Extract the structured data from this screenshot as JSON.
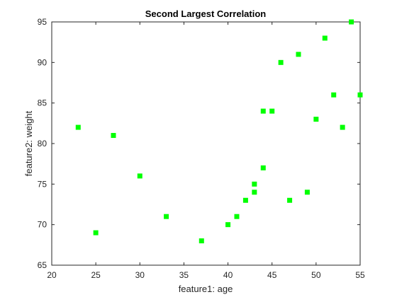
{
  "chart_data": {
    "type": "scatter",
    "title": "Second Largest Correlation",
    "xlabel": "feature1: age",
    "ylabel": "feature2: weight",
    "xlim": [
      20,
      55
    ],
    "ylim": [
      65,
      95
    ],
    "xticks": [
      "20",
      "25",
      "30",
      "35",
      "40",
      "45",
      "50",
      "55"
    ],
    "yticks": [
      "65",
      "70",
      "75",
      "80",
      "85",
      "90",
      "95"
    ],
    "grid": false,
    "legend": "none",
    "marker": "square",
    "marker_color": "#00ff00",
    "axis_color": "#262626",
    "background": "#ffffff",
    "points": [
      {
        "x": 23,
        "y": 82
      },
      {
        "x": 25,
        "y": 69
      },
      {
        "x": 27,
        "y": 81
      },
      {
        "x": 30,
        "y": 76
      },
      {
        "x": 33,
        "y": 71
      },
      {
        "x": 37,
        "y": 68
      },
      {
        "x": 40,
        "y": 70
      },
      {
        "x": 41,
        "y": 71
      },
      {
        "x": 42,
        "y": 73
      },
      {
        "x": 43,
        "y": 74
      },
      {
        "x": 43,
        "y": 75
      },
      {
        "x": 44,
        "y": 77
      },
      {
        "x": 44,
        "y": 84
      },
      {
        "x": 45,
        "y": 84
      },
      {
        "x": 46,
        "y": 90
      },
      {
        "x": 47,
        "y": 73
      },
      {
        "x": 48,
        "y": 91
      },
      {
        "x": 49,
        "y": 74
      },
      {
        "x": 50,
        "y": 83
      },
      {
        "x": 51,
        "y": 93
      },
      {
        "x": 52,
        "y": 86
      },
      {
        "x": 53,
        "y": 82
      },
      {
        "x": 54,
        "y": 95
      },
      {
        "x": 55,
        "y": 86
      }
    ]
  }
}
